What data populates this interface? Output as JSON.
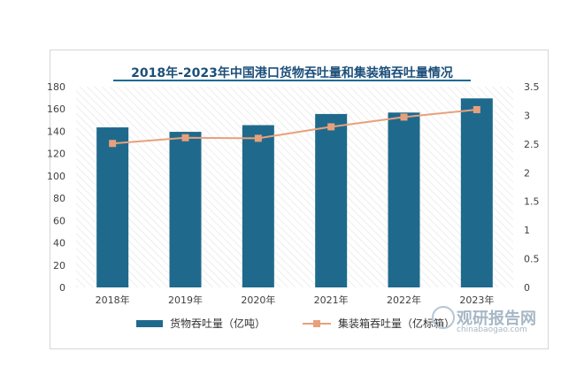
{
  "chart_data": {
    "type": "bar",
    "title": "2018年-2023年中国港口货物吞吐量和集装箱吞吐量情况",
    "categories": [
      "2018年",
      "2019年",
      "2020年",
      "2021年",
      "2022年",
      "2023年"
    ],
    "series": [
      {
        "name": "货物吞吐量（亿吨）",
        "type": "bar",
        "axis": "left",
        "color": "#1f6a8c",
        "values": [
          143.5,
          139.5,
          145.5,
          155.5,
          156.8,
          169.5
        ]
      },
      {
        "name": "集装箱吞吐量（亿标箱）",
        "type": "line",
        "axis": "right",
        "color": "#e8a07c",
        "values": [
          2.51,
          2.61,
          2.6,
          2.8,
          2.97,
          3.1
        ]
      }
    ],
    "y_left": {
      "lim": [
        0,
        180
      ],
      "ticks": [
        "0",
        "20",
        "40",
        "60",
        "80",
        "100",
        "120",
        "140",
        "160",
        "180"
      ]
    },
    "y_right": {
      "lim": [
        0,
        3.5
      ],
      "ticks": [
        "0",
        "0.5",
        "1",
        "1.5",
        "2",
        "2.5",
        "3",
        "3.5"
      ]
    },
    "grid": false,
    "legend_position": "bottom"
  },
  "watermark": {
    "name": "观研报告网",
    "url": "chinabaogao.com"
  }
}
